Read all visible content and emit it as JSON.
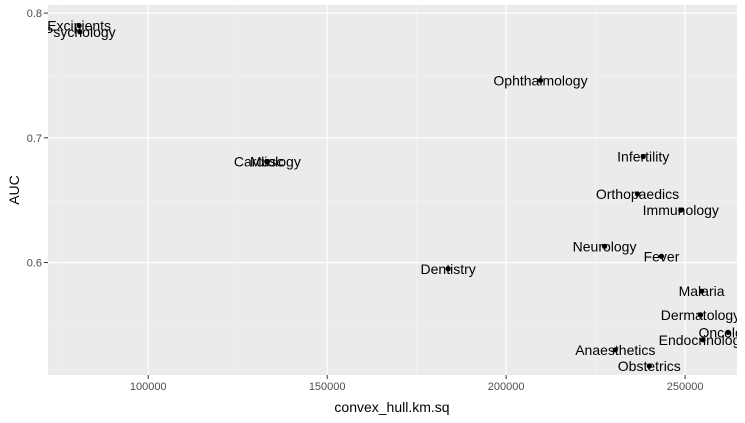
{
  "chart_data": {
    "type": "scatter",
    "title": "",
    "xlabel": "convex_hull.km.sq",
    "ylabel": "AUC",
    "xlim": [
      72000,
      264500
    ],
    "ylim": [
      0.5098,
      0.8065
    ],
    "x_ticks": [
      {
        "value": 100000,
        "label": "100000"
      },
      {
        "value": 150000,
        "label": "150000"
      },
      {
        "value": 200000,
        "label": "200000"
      },
      {
        "value": 250000,
        "label": "250000"
      }
    ],
    "y_ticks": [
      {
        "value": 0.6,
        "label": "0.6"
      },
      {
        "value": 0.7,
        "label": "0.7"
      },
      {
        "value": 0.8,
        "label": "0.8"
      }
    ],
    "grid": true,
    "legend": "none",
    "colors": {
      "panel": "#ebebeb",
      "grid_major": "#ffffff",
      "point": "#000000"
    },
    "points": [
      {
        "label": "Excipients",
        "x": 80700,
        "y": 0.79
      },
      {
        "label": "Psychology",
        "x": 80900,
        "y": 0.785
      },
      {
        "label": "Ophthalmology",
        "x": 209600,
        "y": 0.746
      },
      {
        "label": "Musc",
        "x": 133100,
        "y": 0.681
      },
      {
        "label": "Cardiology",
        "x": 133300,
        "y": 0.681
      },
      {
        "label": "Infertility",
        "x": 238300,
        "y": 0.685
      },
      {
        "label": "Orthopaedics",
        "x": 236700,
        "y": 0.655
      },
      {
        "label": "Immunology",
        "x": 248800,
        "y": 0.642
      },
      {
        "label": "Neurology",
        "x": 227500,
        "y": 0.613
      },
      {
        "label": "Fever",
        "x": 243400,
        "y": 0.605
      },
      {
        "label": "Dentistry",
        "x": 183800,
        "y": 0.595
      },
      {
        "label": "Malaria",
        "x": 254600,
        "y": 0.577
      },
      {
        "label": "Dermatology",
        "x": 254300,
        "y": 0.558
      },
      {
        "label": "Oncology",
        "x": 262000,
        "y": 0.544
      },
      {
        "label": "Endocrinology",
        "x": 255000,
        "y": 0.538
      },
      {
        "label": "Anaesthetics",
        "x": 230500,
        "y": 0.53
      },
      {
        "label": "Obstetrics",
        "x": 240000,
        "y": 0.517
      }
    ]
  }
}
